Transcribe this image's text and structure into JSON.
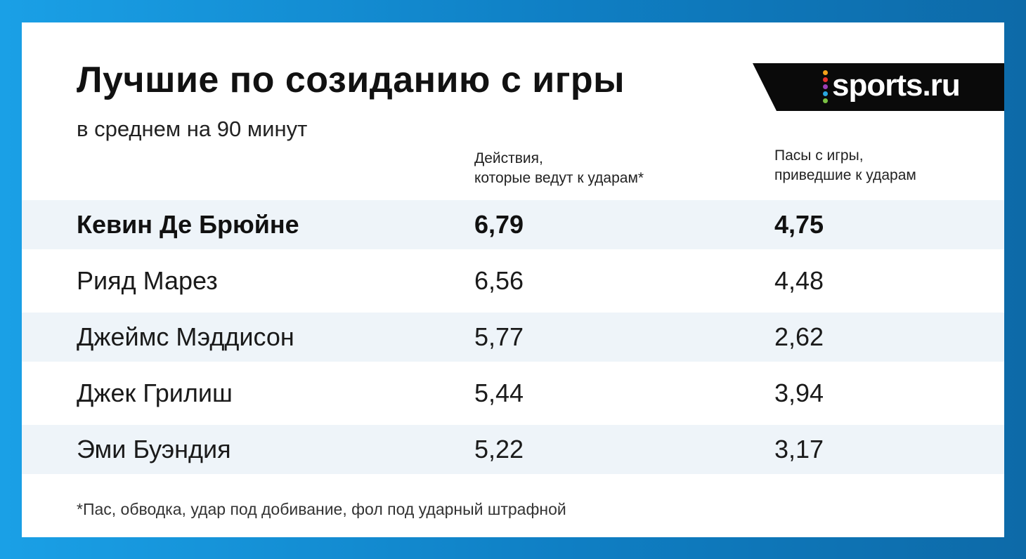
{
  "title": "Лучшие по созиданию с игры",
  "subtitle": "в среднем на 90 минут",
  "logo": {
    "text": "sports.ru",
    "dot_colors": [
      "#f6a21a",
      "#e5312f",
      "#9b3fb7",
      "#2aa7e0",
      "#7ac143"
    ]
  },
  "columns": [
    "Действия,\nкоторые ведут к ударам*",
    "Пасы с игры,\nприведшие к ударам"
  ],
  "rows": [
    {
      "name": "Кевин Де Брюйне",
      "v1": "6,79",
      "v2": "4,75"
    },
    {
      "name": "Рияд Марез",
      "v1": "6,56",
      "v2": "4,48"
    },
    {
      "name": "Джеймс Мэддисон",
      "v1": "5,77",
      "v2": "2,62"
    },
    {
      "name": "Джек Грилиш",
      "v1": "5,44",
      "v2": "3,94"
    },
    {
      "name": "Эми Буэндия",
      "v1": "5,22",
      "v2": "3,17"
    }
  ],
  "footnote": "*Пас, обводка, удар под добивание, фол под ударный штрафной",
  "colors": {
    "background": "#1aa0e6",
    "row_shade": "#eef4f9",
    "logo_bg": "#0a0a0a"
  }
}
